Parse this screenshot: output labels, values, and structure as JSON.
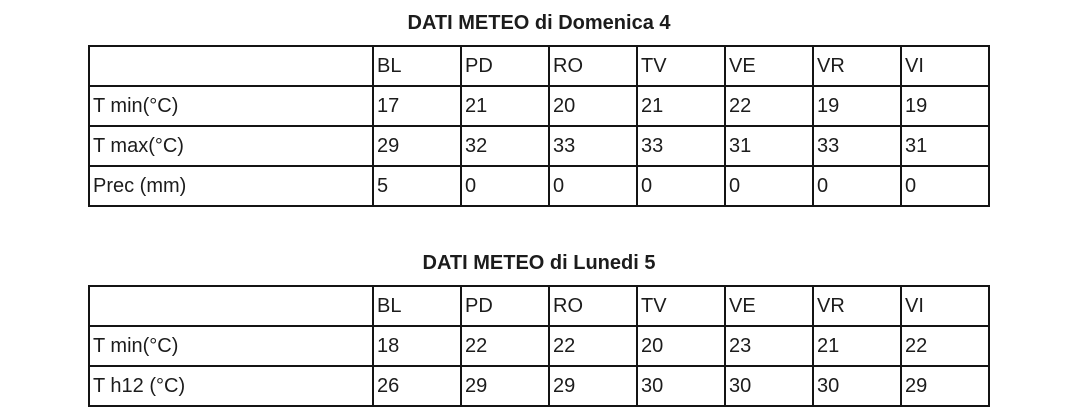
{
  "page": {
    "background": "#ffffff",
    "text_color": "#1c1c1c",
    "border_color": "#141414"
  },
  "tables": [
    {
      "title": "DATI METEO di Domenica 4",
      "columns": [
        "",
        "BL",
        "PD",
        "RO",
        "TV",
        "VE",
        "VR",
        "VI"
      ],
      "rows": [
        {
          "label": "T min(°C)",
          "values": [
            "17",
            "21",
            "20",
            "21",
            "22",
            "19",
            "19"
          ]
        },
        {
          "label": "T max(°C)",
          "values": [
            "29",
            "32",
            "33",
            "33",
            "31",
            "33",
            "31"
          ]
        },
        {
          "label": "Prec (mm)",
          "values": [
            "5",
            "0",
            "0",
            "0",
            "0",
            "0",
            "0"
          ]
        }
      ]
    },
    {
      "title": "DATI METEO di Lunedi 5",
      "columns": [
        "",
        "BL",
        "PD",
        "RO",
        "TV",
        "VE",
        "VR",
        "VI"
      ],
      "rows": [
        {
          "label": "T min(°C)",
          "values": [
            "18",
            "22",
            "22",
            "20",
            "23",
            "21",
            "22"
          ]
        },
        {
          "label": "T h12 (°C)",
          "values": [
            "26",
            "29",
            "29",
            "30",
            "30",
            "30",
            "29"
          ]
        }
      ]
    }
  ]
}
